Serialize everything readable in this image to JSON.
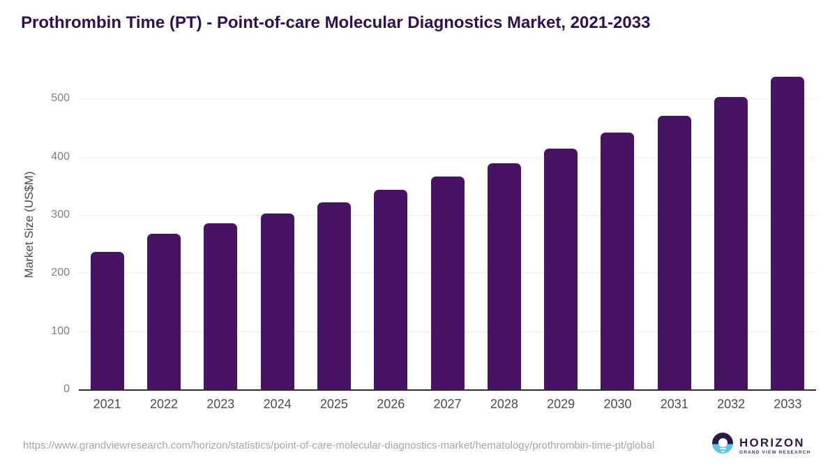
{
  "title": "Prothrombin Time (PT) - Point-of-care Molecular Diagnostics Market, 2021-2033",
  "chart_data": {
    "type": "bar",
    "title": "Prothrombin Time (PT) - Point-of-care Molecular Diagnostics Market, 2021-2033",
    "categories": [
      "2021",
      "2022",
      "2023",
      "2024",
      "2025",
      "2026",
      "2027",
      "2028",
      "2029",
      "2030",
      "2031",
      "2032",
      "2033"
    ],
    "values": [
      237,
      268,
      286,
      303,
      322,
      343,
      366,
      389,
      414,
      442,
      471,
      503,
      538
    ],
    "xlabel": "",
    "ylabel": "Market Size (US$M)",
    "ylim": [
      0,
      550
    ],
    "y_ticks": [
      0,
      100,
      200,
      300,
      400,
      500
    ],
    "grid": "horizontal-only",
    "legend": "none",
    "bar_color": "#481363"
  },
  "footer": {
    "source_url": "https://www.grandviewresearch.com/horizon/statistics/point-of-care-molecular-diagnostics-market/hematology/prothrombin-time-pt/global",
    "logo": {
      "name": "HORIZON",
      "subtitle": "GRAND VIEW RESEARCH",
      "icon": "sun-over-water-circle-icon"
    }
  },
  "colors": {
    "bar": "#481363",
    "title_text": "#2f1050",
    "axis_line": "#2d2d2d",
    "gridline": "#ececec",
    "y_tick_text": "#7e7e7e",
    "x_tick_text": "#4c4c4c",
    "url_text": "#a5a5a5",
    "logo_purple": "#2d1846",
    "logo_blue": "#5ec3ec"
  }
}
